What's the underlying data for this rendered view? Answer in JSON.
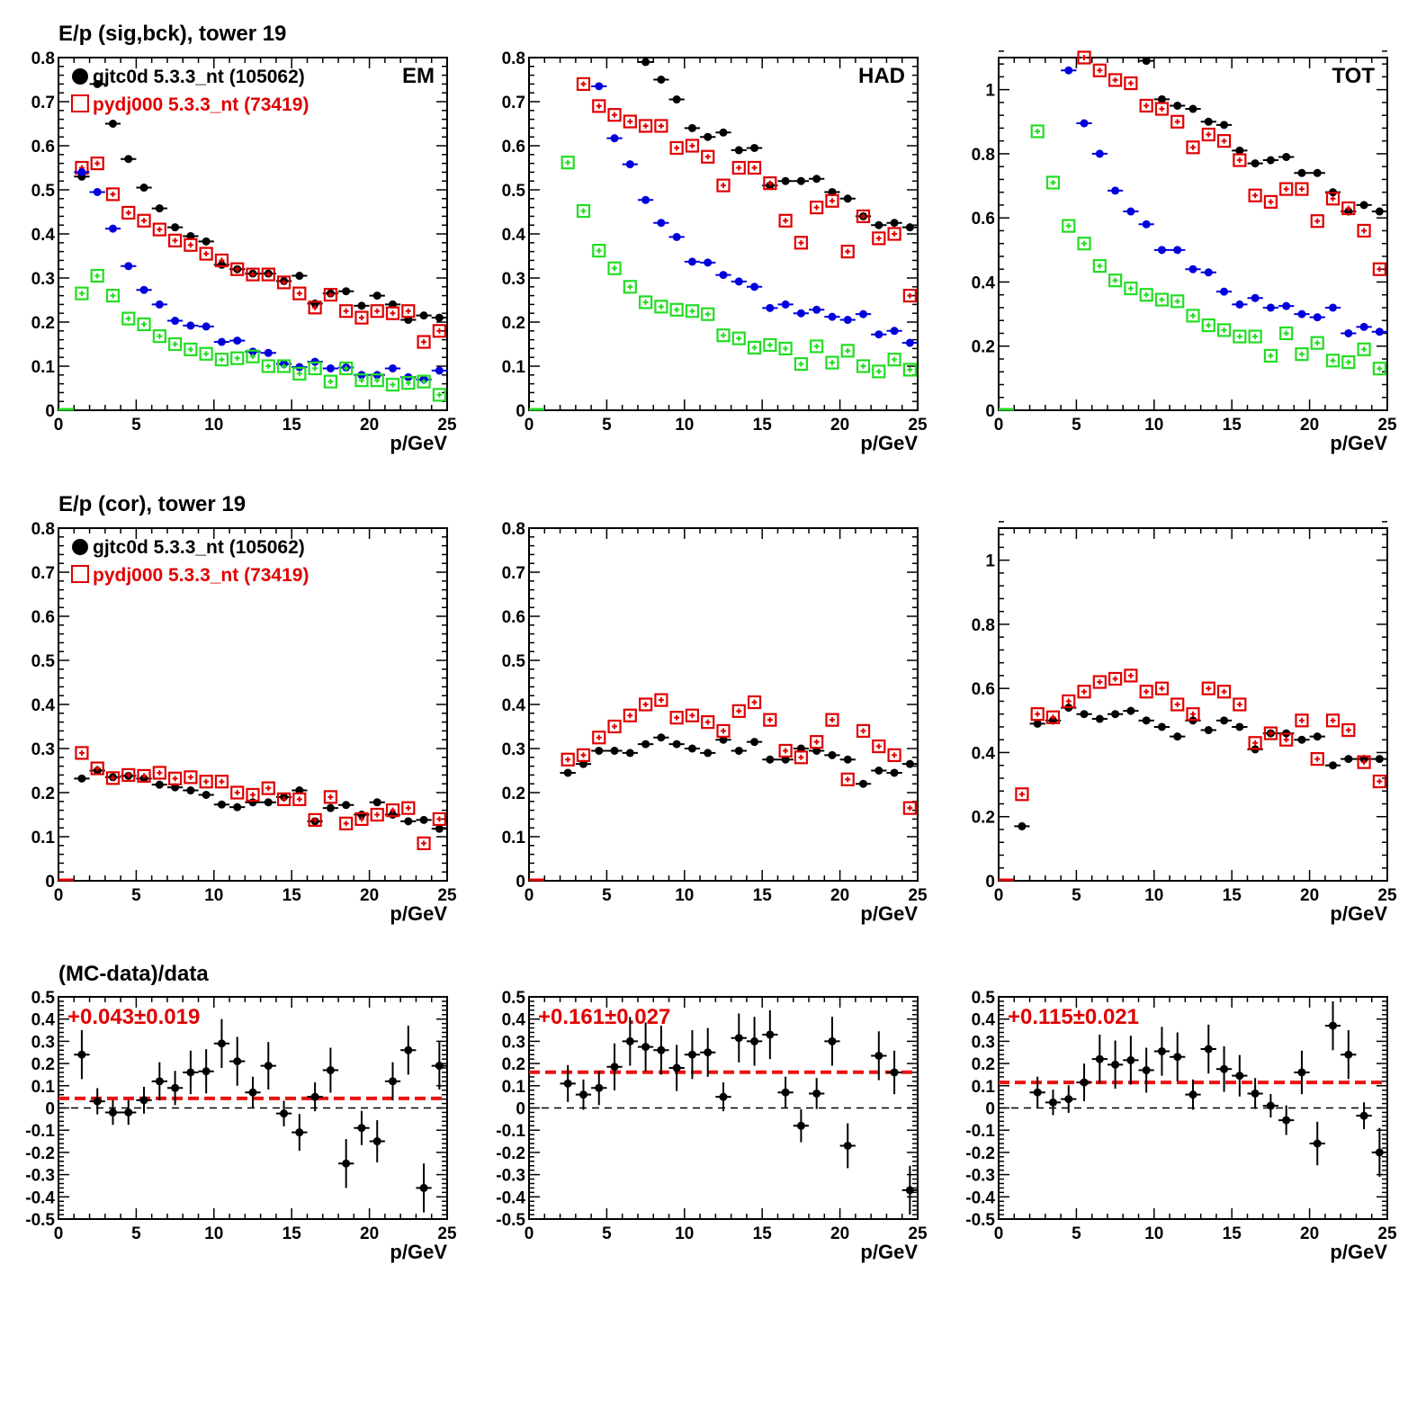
{
  "row_titles": [
    "E/p (sig,bck), tower 19",
    "E/p (cor), tower 19",
    "(MC-data)/data"
  ],
  "xlabel": "p/GeV",
  "legend": {
    "data_label": "gjtc0d 5.3.3_nt (105062)",
    "mc_label": "pydj000 5.3.3_nt (73419)"
  },
  "colors": {
    "data": "#000000",
    "mc": "#e00000",
    "bck_data": "#0000dd",
    "bck_mc": "#22dd22",
    "fit_line": "#ee1111"
  },
  "chart_data": [
    {
      "type": "scatter",
      "panel": "sig-bck-em",
      "tag": "EM",
      "xlim": [
        0,
        25
      ],
      "ylim": [
        0,
        0.8
      ],
      "yticks": [
        "0",
        "0.1",
        "0.2",
        "0.3",
        "0.4",
        "0.5",
        "0.6",
        "0.7",
        "0.8"
      ],
      "xticks": [
        "0",
        "5",
        "10",
        "15",
        "20",
        "25"
      ],
      "x": [
        1.5,
        2.5,
        3.5,
        4.5,
        5.5,
        6.5,
        7.5,
        8.5,
        9.5,
        10.5,
        11.5,
        12.5,
        13.5,
        14.5,
        15.5,
        16.5,
        17.5,
        18.5,
        19.5,
        20.5,
        21.5,
        22.5,
        23.5,
        24.5
      ],
      "series": [
        {
          "name": "gjtc0d 5.3.3_nt (105062)",
          "role": "data-sig",
          "values": [
            0.53,
            0.74,
            0.65,
            0.57,
            0.505,
            0.458,
            0.415,
            0.395,
            0.383,
            0.33,
            0.32,
            0.31,
            0.31,
            0.293,
            0.305,
            0.242,
            0.265,
            0.27,
            0.237,
            0.26,
            0.24,
            0.205,
            0.215,
            0.21
          ]
        },
        {
          "name": "pydj000 5.3.3_nt (73419)",
          "role": "mc-sig",
          "values": [
            0.55,
            0.56,
            0.49,
            0.448,
            0.43,
            0.41,
            0.385,
            0.375,
            0.355,
            0.34,
            0.32,
            0.308,
            0.308,
            0.29,
            0.265,
            0.233,
            0.262,
            0.225,
            0.21,
            0.225,
            0.22,
            0.225,
            0.155,
            0.18
          ]
        },
        {
          "role": "data-bck",
          "values": [
            0.54,
            0.495,
            0.412,
            0.327,
            0.273,
            0.24,
            0.203,
            0.192,
            0.19,
            0.155,
            0.158,
            0.133,
            0.13,
            0.105,
            0.098,
            0.11,
            0.095,
            0.097,
            0.08,
            0.08,
            0.095,
            0.075,
            0.07,
            0.09
          ]
        },
        {
          "role": "mc-bck",
          "values": [
            0.265,
            0.305,
            0.26,
            0.208,
            0.195,
            0.168,
            0.15,
            0.138,
            0.128,
            0.115,
            0.118,
            0.122,
            0.1,
            0.1,
            0.083,
            0.095,
            0.065,
            0.095,
            0.068,
            0.068,
            0.058,
            0.062,
            0.065,
            0.035
          ]
        }
      ]
    },
    {
      "type": "scatter",
      "panel": "sig-bck-had",
      "tag": "HAD",
      "xlim": [
        0,
        25
      ],
      "ylim": [
        0,
        0.8
      ],
      "yticks": [
        "0",
        "0.1",
        "0.2",
        "0.3",
        "0.4",
        "0.5",
        "0.6",
        "0.7",
        "0.8"
      ],
      "xticks": [
        "0",
        "5",
        "10",
        "15",
        "20",
        "25"
      ],
      "x": [
        2.5,
        3.5,
        4.5,
        5.5,
        6.5,
        7.5,
        8.5,
        9.5,
        10.5,
        11.5,
        12.5,
        13.5,
        14.5,
        15.5,
        16.5,
        17.5,
        18.5,
        19.5,
        20.5,
        21.5,
        22.5,
        23.5,
        24.5
      ],
      "series": [
        {
          "name": "gjtc0d 5.3.3_nt (105062)",
          "role": "data-sig",
          "values": [
            null,
            null,
            null,
            null,
            null,
            0.79,
            0.75,
            0.705,
            0.64,
            0.62,
            0.63,
            0.59,
            0.595,
            0.51,
            0.52,
            0.52,
            0.525,
            0.495,
            0.48,
            0.44,
            0.42,
            0.425,
            0.415
          ]
        },
        {
          "name": "pydj000 5.3.3_nt (73419)",
          "role": "mc-sig",
          "values": [
            null,
            0.74,
            0.69,
            0.67,
            0.655,
            0.645,
            0.645,
            0.595,
            0.6,
            0.575,
            0.51,
            0.55,
            0.55,
            0.515,
            0.43,
            0.38,
            0.46,
            0.475,
            0.36,
            0.44,
            0.39,
            0.4,
            0.26
          ]
        },
        {
          "role": "data-bck",
          "values": [
            null,
            null,
            0.735,
            0.617,
            0.558,
            0.477,
            0.425,
            0.393,
            0.337,
            0.335,
            0.307,
            0.292,
            0.28,
            0.232,
            0.24,
            0.22,
            0.228,
            0.212,
            0.205,
            0.218,
            0.172,
            0.18,
            0.153
          ]
        },
        {
          "role": "mc-bck",
          "values": [
            0.562,
            0.452,
            0.362,
            0.322,
            0.28,
            0.245,
            0.235,
            0.228,
            0.225,
            0.218,
            0.17,
            0.163,
            0.142,
            0.148,
            0.14,
            0.105,
            0.145,
            0.108,
            0.135,
            0.1,
            0.088,
            0.115,
            0.092
          ]
        }
      ]
    },
    {
      "type": "scatter",
      "panel": "sig-bck-tot",
      "tag": "TOT",
      "xlim": [
        0,
        25
      ],
      "ylim": [
        0,
        1.1
      ],
      "yticks": [
        "0",
        "0.2",
        "0.4",
        "0.6",
        "0.8",
        "1"
      ],
      "xticks": [
        "0",
        "5",
        "10",
        "15",
        "20",
        "25"
      ],
      "x": [
        2.5,
        3.5,
        4.5,
        5.5,
        6.5,
        7.5,
        8.5,
        9.5,
        10.5,
        11.5,
        12.5,
        13.5,
        14.5,
        15.5,
        16.5,
        17.5,
        18.5,
        19.5,
        20.5,
        21.5,
        22.5,
        23.5,
        24.5
      ],
      "series": [
        {
          "name": "gjtc0d 5.3.3_nt (105062)",
          "role": "data-sig",
          "values": [
            null,
            null,
            null,
            null,
            null,
            null,
            null,
            1.09,
            0.97,
            0.95,
            0.94,
            0.9,
            0.89,
            0.81,
            0.77,
            0.78,
            0.79,
            0.74,
            0.74,
            0.68,
            0.62,
            0.64,
            0.62
          ]
        },
        {
          "name": "pydj000 5.3.3_nt (73419)",
          "role": "mc-sig",
          "values": [
            null,
            null,
            null,
            1.1,
            1.06,
            1.03,
            1.02,
            0.95,
            0.94,
            0.9,
            0.82,
            0.86,
            0.84,
            0.78,
            0.67,
            0.65,
            0.69,
            0.69,
            0.59,
            0.66,
            0.63,
            0.56,
            0.44
          ]
        },
        {
          "role": "data-bck",
          "values": [
            null,
            null,
            1.06,
            0.895,
            0.8,
            0.685,
            0.62,
            0.58,
            0.5,
            0.5,
            0.44,
            0.43,
            0.37,
            0.33,
            0.35,
            0.32,
            0.325,
            0.3,
            0.29,
            0.32,
            0.24,
            0.26,
            0.245
          ]
        },
        {
          "role": "mc-bck",
          "values": [
            0.87,
            0.71,
            0.575,
            0.52,
            0.45,
            0.405,
            0.38,
            0.36,
            0.345,
            0.34,
            0.295,
            0.265,
            0.25,
            0.23,
            0.23,
            0.17,
            0.24,
            0.175,
            0.21,
            0.155,
            0.15,
            0.19,
            0.13
          ]
        }
      ]
    },
    {
      "type": "scatter",
      "panel": "cor-em",
      "xlim": [
        0,
        25
      ],
      "ylim": [
        0,
        0.8
      ],
      "yticks": [
        "0",
        "0.1",
        "0.2",
        "0.3",
        "0.4",
        "0.5",
        "0.6",
        "0.7",
        "0.8"
      ],
      "xticks": [
        "0",
        "5",
        "10",
        "15",
        "20",
        "25"
      ],
      "x": [
        1.5,
        2.5,
        3.5,
        4.5,
        5.5,
        6.5,
        7.5,
        8.5,
        9.5,
        10.5,
        11.5,
        12.5,
        13.5,
        14.5,
        15.5,
        16.5,
        17.5,
        18.5,
        19.5,
        20.5,
        21.5,
        22.5,
        23.5,
        24.5
      ],
      "series": [
        {
          "name": "gjtc0d 5.3.3_nt (105062)",
          "role": "data",
          "values": [
            0.232,
            0.25,
            0.235,
            0.238,
            0.232,
            0.218,
            0.212,
            0.205,
            0.195,
            0.173,
            0.167,
            0.178,
            0.178,
            0.19,
            0.205,
            0.135,
            0.165,
            0.172,
            0.15,
            0.178,
            0.15,
            0.135,
            0.138,
            0.118
          ]
        },
        {
          "name": "pydj000 5.3.3_nt (73419)",
          "role": "mc",
          "values": [
            0.29,
            0.255,
            0.233,
            0.24,
            0.238,
            0.245,
            0.232,
            0.235,
            0.225,
            0.225,
            0.2,
            0.195,
            0.21,
            0.185,
            0.185,
            0.138,
            0.19,
            0.13,
            0.14,
            0.15,
            0.16,
            0.165,
            0.085,
            0.14
          ]
        }
      ]
    },
    {
      "type": "scatter",
      "panel": "cor-had",
      "xlim": [
        0,
        25
      ],
      "ylim": [
        0,
        0.8
      ],
      "yticks": [
        "0",
        "0.1",
        "0.2",
        "0.3",
        "0.4",
        "0.5",
        "0.6",
        "0.7",
        "0.8"
      ],
      "xticks": [
        "0",
        "5",
        "10",
        "15",
        "20",
        "25"
      ],
      "x": [
        2.5,
        3.5,
        4.5,
        5.5,
        6.5,
        7.5,
        8.5,
        9.5,
        10.5,
        11.5,
        12.5,
        13.5,
        14.5,
        15.5,
        16.5,
        17.5,
        18.5,
        19.5,
        20.5,
        21.5,
        22.5,
        23.5,
        24.5
      ],
      "series": [
        {
          "name": "gjtc0d 5.3.3_nt (105062)",
          "role": "data",
          "values": [
            0.245,
            0.265,
            0.295,
            0.295,
            0.29,
            0.31,
            0.325,
            0.31,
            0.3,
            0.29,
            0.32,
            0.295,
            0.315,
            0.275,
            0.275,
            0.3,
            0.295,
            0.285,
            0.275,
            0.22,
            0.25,
            0.245,
            0.265
          ]
        },
        {
          "name": "pydj000 5.3.3_nt (73419)",
          "role": "mc",
          "values": [
            0.275,
            0.285,
            0.325,
            0.35,
            0.375,
            0.4,
            0.41,
            0.37,
            0.375,
            0.36,
            0.34,
            0.385,
            0.405,
            0.365,
            0.295,
            0.28,
            0.315,
            0.365,
            0.23,
            0.34,
            0.305,
            0.285,
            0.165
          ]
        }
      ]
    },
    {
      "type": "scatter",
      "panel": "cor-tot",
      "xlim": [
        0,
        25
      ],
      "ylim": [
        0,
        1.1
      ],
      "yticks": [
        "0",
        "0.2",
        "0.4",
        "0.6",
        "0.8",
        "1"
      ],
      "xticks": [
        "0",
        "5",
        "10",
        "15",
        "20",
        "25"
      ],
      "x": [
        1.5,
        2.5,
        3.5,
        4.5,
        5.5,
        6.5,
        7.5,
        8.5,
        9.5,
        10.5,
        11.5,
        12.5,
        13.5,
        14.5,
        15.5,
        16.5,
        17.5,
        18.5,
        19.5,
        20.5,
        21.5,
        22.5,
        23.5,
        24.5
      ],
      "series": [
        {
          "name": "gjtc0d 5.3.3_nt (105062)",
          "role": "data",
          "values": [
            0.17,
            0.49,
            0.5,
            0.54,
            0.52,
            0.505,
            0.52,
            0.53,
            0.5,
            0.48,
            0.45,
            0.5,
            0.47,
            0.5,
            0.48,
            0.41,
            0.46,
            0.46,
            0.44,
            0.45,
            0.36,
            0.38,
            0.38,
            0.38
          ]
        },
        {
          "name": "pydj000 5.3.3_nt (73419)",
          "role": "mc",
          "values": [
            0.27,
            0.52,
            0.51,
            0.56,
            0.59,
            0.62,
            0.63,
            0.64,
            0.59,
            0.6,
            0.55,
            0.52,
            0.6,
            0.59,
            0.55,
            0.43,
            0.46,
            0.44,
            0.5,
            0.38,
            0.5,
            0.47,
            0.37,
            0.31
          ]
        }
      ]
    },
    {
      "type": "scatter",
      "panel": "ratio-em",
      "xlim": [
        0,
        25
      ],
      "ylim": [
        -0.5,
        0.5
      ],
      "yticks": [
        "-0.5",
        "-0.4",
        "-0.3",
        "-0.2",
        "-0.1",
        "0",
        "0.1",
        "0.2",
        "0.3",
        "0.4",
        "0.5"
      ],
      "xticks": [
        "0",
        "5",
        "10",
        "15",
        "20",
        "25"
      ],
      "fit_label": "+0.043±0.019",
      "fit_value": 0.043,
      "x": [
        1.5,
        2.5,
        3.5,
        4.5,
        5.5,
        6.5,
        7.5,
        8.5,
        9.5,
        10.5,
        11.5,
        12.5,
        13.5,
        14.5,
        15.5,
        16.5,
        17.5,
        18.5,
        19.5,
        20.5,
        21.5,
        22.5,
        23.5,
        24.5
      ],
      "series": [
        {
          "role": "ratio",
          "values": [
            0.24,
            0.03,
            -0.02,
            -0.02,
            0.035,
            0.12,
            0.09,
            0.16,
            0.165,
            0.29,
            0.21,
            0.07,
            0.19,
            -0.025,
            -0.11,
            0.05,
            0.17,
            -0.25,
            -0.09,
            -0.15,
            0.12,
            0.26,
            -0.36,
            0.19
          ]
        }
      ]
    },
    {
      "type": "scatter",
      "panel": "ratio-had",
      "xlim": [
        0,
        25
      ],
      "ylim": [
        -0.5,
        0.5
      ],
      "yticks": [
        "-0.5",
        "-0.4",
        "-0.3",
        "-0.2",
        "-0.1",
        "0",
        "0.1",
        "0.2",
        "0.3",
        "0.4",
        "0.5"
      ],
      "xticks": [
        "0",
        "5",
        "10",
        "15",
        "20",
        "25"
      ],
      "fit_label": "+0.161±0.027",
      "fit_value": 0.161,
      "x": [
        2.5,
        3.5,
        4.5,
        5.5,
        6.5,
        7.5,
        8.5,
        9.5,
        10.5,
        11.5,
        12.5,
        13.5,
        14.5,
        15.5,
        16.5,
        17.5,
        18.5,
        19.5,
        20.5,
        21.5,
        22.5,
        23.5,
        24.5
      ],
      "series": [
        {
          "role": "ratio",
          "values": [
            0.11,
            0.06,
            0.09,
            0.185,
            0.3,
            0.275,
            0.26,
            0.18,
            0.24,
            0.25,
            0.05,
            0.315,
            0.3,
            0.33,
            0.07,
            -0.08,
            0.065,
            0.3,
            -0.17,
            null,
            0.235,
            0.16,
            -0.37
          ]
        }
      ]
    },
    {
      "type": "scatter",
      "panel": "ratio-tot",
      "xlim": [
        0,
        25
      ],
      "ylim": [
        -0.5,
        0.5
      ],
      "yticks": [
        "-0.5",
        "-0.4",
        "-0.3",
        "-0.2",
        "-0.1",
        "0",
        "0.1",
        "0.2",
        "0.3",
        "0.4",
        "0.5"
      ],
      "xticks": [
        "0",
        "5",
        "10",
        "15",
        "20",
        "25"
      ],
      "fit_label": "+0.115±0.021",
      "fit_value": 0.115,
      "x": [
        2.5,
        3.5,
        4.5,
        5.5,
        6.5,
        7.5,
        8.5,
        9.5,
        10.5,
        11.5,
        12.5,
        13.5,
        14.5,
        15.5,
        16.5,
        17.5,
        18.5,
        19.5,
        20.5,
        21.5,
        22.5,
        23.5,
        24.5
      ],
      "series": [
        {
          "role": "ratio",
          "values": [
            0.07,
            0.025,
            0.04,
            0.115,
            0.22,
            0.195,
            0.215,
            0.17,
            0.255,
            0.23,
            0.06,
            0.265,
            0.175,
            0.145,
            0.065,
            0.01,
            -0.055,
            0.16,
            -0.16,
            0.37,
            0.24,
            -0.035,
            -0.2
          ]
        }
      ]
    }
  ]
}
